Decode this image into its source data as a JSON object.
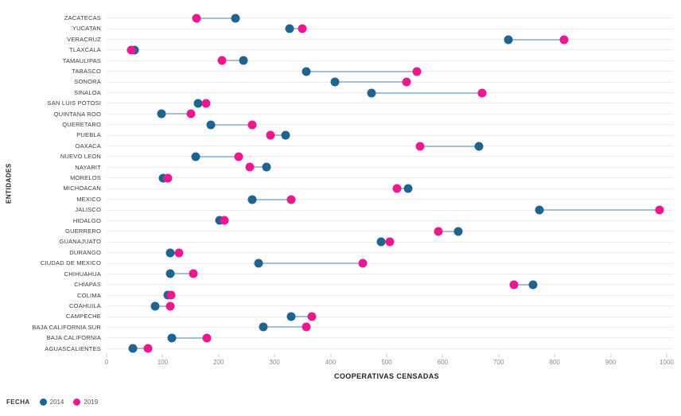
{
  "chart_data": {
    "type": "scatter",
    "subtype": "dumbbell",
    "title": "",
    "xlabel": "COOPERATIVAS CENSADAS",
    "ylabel": "ENTIDADES",
    "xlim": [
      0,
      1000
    ],
    "xticks": [
      0,
      100,
      200,
      300,
      400,
      500,
      600,
      700,
      800,
      900,
      1000
    ],
    "grid": "horizontal category gridlines",
    "legend": {
      "title": "FECHA",
      "position": "bottom-left"
    },
    "categories": [
      "ZACATECAS",
      "YUCATAN",
      "VERACRUZ",
      "TLAXCALA",
      "TAMAULIPAS",
      "TABASCO",
      "SONORA",
      "SINALOA",
      "SAN LUIS POTOSI",
      "QUINTANA ROO",
      "QUERETARO",
      "PUEBLA",
      "OAXACA",
      "NUEVO LEON",
      "NAYARIT",
      "MORELOS",
      "MICHOACAN",
      "MEXICO",
      "JALISCO",
      "HIDALGO",
      "GUERRERO",
      "GUANAJUATO",
      "DURANGO",
      "CIUDAD DE MEXICO",
      "CHIHUAHUA",
      "CHIAPAS",
      "COLIMA",
      "COAHUILA",
      "CAMPECHE",
      "BAJA CALIFORNIA SUR",
      "BAJA CALIFORNIA",
      "AGUASCALIENTES"
    ],
    "series": [
      {
        "name": "2014",
        "color": "#1f6391",
        "values": [
          230,
          326,
          718,
          50,
          245,
          357,
          407,
          473,
          164,
          98,
          186,
          320,
          665,
          159,
          286,
          101,
          538,
          260,
          773,
          202,
          628,
          490,
          113,
          272,
          114,
          762,
          110,
          87,
          330,
          280,
          117,
          47
        ]
      },
      {
        "name": "2019",
        "color": "#ed1890",
        "values": [
          161,
          349,
          817,
          44,
          206,
          554,
          536,
          671,
          178,
          151,
          260,
          293,
          559,
          236,
          255,
          109,
          518,
          330,
          987,
          210,
          593,
          506,
          129,
          457,
          155,
          727,
          115,
          114,
          366,
          356,
          179,
          74
        ]
      }
    ],
    "connector_color": "#a3c2d9",
    "gridline_color": "#ededed",
    "tick_color": "#c9c9c9"
  }
}
